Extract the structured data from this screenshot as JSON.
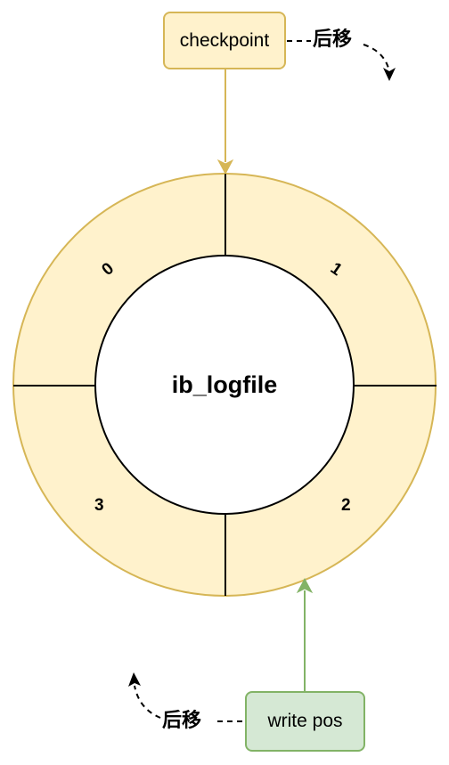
{
  "diagram": {
    "center_label": "ib_logfile",
    "segments": [
      "0",
      "1",
      "2",
      "3"
    ],
    "checkpoint": {
      "label": "checkpoint",
      "move_label": "后移"
    },
    "write_pos": {
      "label": "write pos",
      "move_label": "后移"
    },
    "colors": {
      "ring_fill": "#fff2cc",
      "ring_stroke": "#d6b656",
      "checkpoint_fill": "#fff2cc",
      "checkpoint_stroke": "#d6b656",
      "writepos_fill": "#d5e8d4",
      "writepos_stroke": "#82b366",
      "divider": "#000000"
    }
  }
}
